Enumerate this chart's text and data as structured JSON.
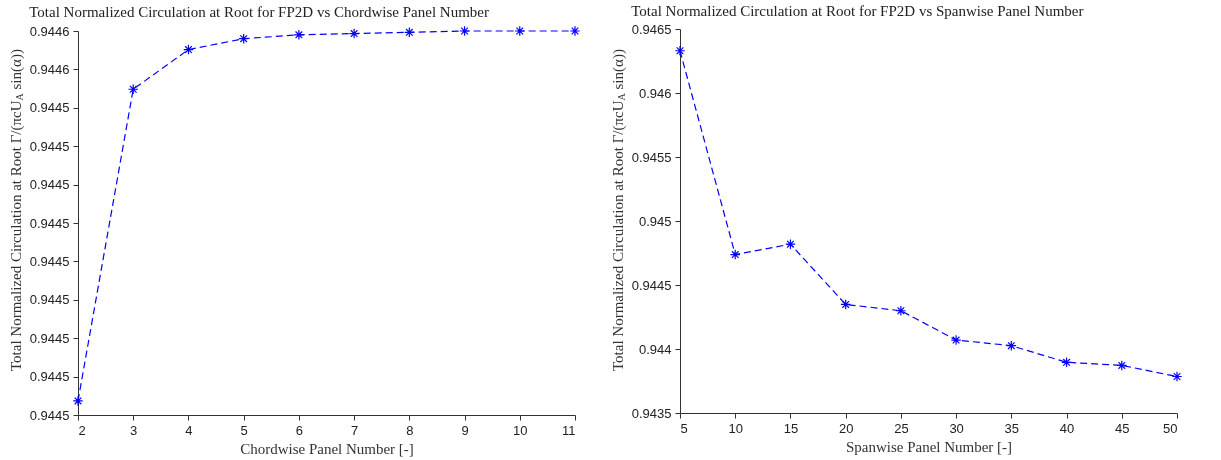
{
  "chart_data": [
    {
      "type": "line",
      "title": "Total Normalized Circulation at Root for FP2D vs Chordwise Panel Number",
      "xlabel": "Chordwise Panel Number [-]",
      "ylabel": "Total Normalized Circulation at Root Γ/(πcU$_{A}$ sin(α))",
      "x": [
        2,
        3,
        4,
        5,
        6,
        7,
        8,
        9,
        10,
        11
      ],
      "series": [
        {
          "color": "#0000ff",
          "values": [
            0.9445022,
            0.9445509,
            0.9445571,
            0.9445588,
            0.9445594,
            0.9445596,
            0.9445598,
            0.94456,
            0.94456,
            0.94456
          ]
        }
      ],
      "xlim": [
        2,
        11
      ],
      "xticks": [
        2,
        3,
        4,
        5,
        6,
        7,
        8,
        9,
        10,
        11
      ],
      "ylim": [
        0.9445,
        0.94456
      ],
      "yticks": [
        {
          "value": 0.9445,
          "label": "0.9445"
        },
        {
          "value": 0.944506,
          "label": "0.9445"
        },
        {
          "value": 0.944512,
          "label": "0.9445"
        },
        {
          "value": 0.944518,
          "label": "0.9445"
        },
        {
          "value": 0.944524,
          "label": "0.9445"
        },
        {
          "value": 0.94453,
          "label": "0.9445"
        },
        {
          "value": 0.944536,
          "label": "0.9445"
        },
        {
          "value": 0.944542,
          "label": "0.9445"
        },
        {
          "value": 0.944548,
          "label": "0.9445"
        },
        {
          "value": 0.944554,
          "label": "0.9446"
        },
        {
          "value": 0.94456,
          "label": "0.9446"
        }
      ],
      "marker": "cross",
      "line_style": "dashed",
      "grid": false,
      "legend": false
    },
    {
      "type": "line",
      "title": "Total Normalized Circulation at Root for FP2D vs Spanwise Panel Number",
      "xlabel": "Spanwise Panel Number [-]",
      "ylabel": "Total Normalized Circulation at Root Γ/(πcU$_{A}$ sin(α))",
      "x": [
        5,
        10,
        15,
        20,
        25,
        30,
        35,
        40,
        45,
        50
      ],
      "series": [
        {
          "color": "#0000ff",
          "values": [
            0.94633,
            0.944738,
            0.944819,
            0.944348,
            0.944299,
            0.94407,
            0.944026,
            0.943896,
            0.943872,
            0.943785
          ]
        }
      ],
      "xlim": [
        5,
        50
      ],
      "xticks": [
        5,
        10,
        15,
        20,
        25,
        30,
        35,
        40,
        45,
        50
      ],
      "ylim": [
        0.9435,
        0.9465
      ],
      "yticks": [
        0.9435,
        0.944,
        0.9445,
        0.945,
        0.9455,
        0.946,
        0.9465
      ],
      "marker": "cross",
      "line_style": "dashed",
      "grid": false,
      "legend": false
    }
  ]
}
